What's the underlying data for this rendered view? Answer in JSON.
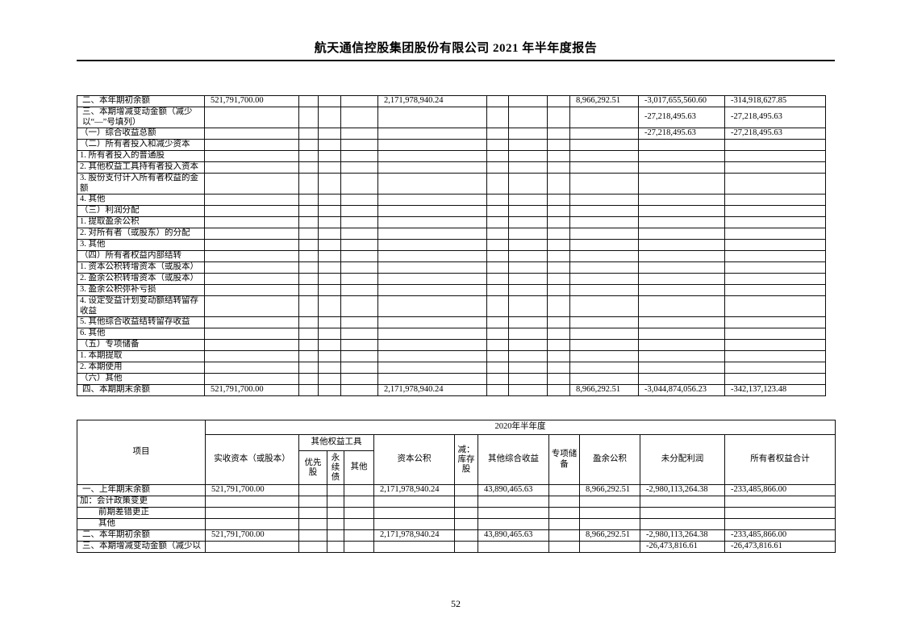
{
  "page": {
    "title": "航天通信控股集团股份有限公司 2021 年半年度报告",
    "page_number": "52"
  },
  "table1": {
    "rows": [
      {
        "indent": "sec",
        "cells": [
          "二、本年期初余额",
          "521,791,700.00",
          "",
          "",
          "",
          "2,171,978,940.24",
          "",
          "",
          "",
          "8,966,292.51",
          "-3,017,655,560.60",
          "-314,918,627.85"
        ]
      },
      {
        "indent": "sec",
        "cells": [
          "三、本期增减变动金额（减少以“—”号填列）",
          "",
          "",
          "",
          "",
          "",
          "",
          "",
          "",
          "",
          "-27,218,495.63",
          "-27,218,495.63"
        ]
      },
      {
        "indent": "sub",
        "cells": [
          "（一）综合收益总额",
          "",
          "",
          "",
          "",
          "",
          "",
          "",
          "",
          "",
          "-27,218,495.63",
          "-27,218,495.63"
        ]
      },
      {
        "indent": "sub",
        "cells": [
          "（二）所有者投入和减少资本",
          "",
          "",
          "",
          "",
          "",
          "",
          "",
          "",
          "",
          "",
          ""
        ]
      },
      {
        "indent": "item",
        "cells": [
          "1. 所有者投入的普通股",
          "",
          "",
          "",
          "",
          "",
          "",
          "",
          "",
          "",
          "",
          ""
        ]
      },
      {
        "indent": "item",
        "cells": [
          "2. 其他权益工具持有者投入资本",
          "",
          "",
          "",
          "",
          "",
          "",
          "",
          "",
          "",
          "",
          ""
        ]
      },
      {
        "indent": "item",
        "cells": [
          "3. 股份支付计入所有者权益的金额",
          "",
          "",
          "",
          "",
          "",
          "",
          "",
          "",
          "",
          "",
          ""
        ]
      },
      {
        "indent": "item",
        "cells": [
          "4. 其他",
          "",
          "",
          "",
          "",
          "",
          "",
          "",
          "",
          "",
          "",
          ""
        ]
      },
      {
        "indent": "sub",
        "cells": [
          "（三）利润分配",
          "",
          "",
          "",
          "",
          "",
          "",
          "",
          "",
          "",
          "",
          ""
        ]
      },
      {
        "indent": "item",
        "cells": [
          "1. 提取盈余公积",
          "",
          "",
          "",
          "",
          "",
          "",
          "",
          "",
          "",
          "",
          ""
        ]
      },
      {
        "indent": "item",
        "cells": [
          "2. 对所有者（或股东）的分配",
          "",
          "",
          "",
          "",
          "",
          "",
          "",
          "",
          "",
          "",
          ""
        ]
      },
      {
        "indent": "item",
        "cells": [
          "3. 其他",
          "",
          "",
          "",
          "",
          "",
          "",
          "",
          "",
          "",
          "",
          ""
        ]
      },
      {
        "indent": "sub",
        "cells": [
          "（四）所有者权益内部结转",
          "",
          "",
          "",
          "",
          "",
          "",
          "",
          "",
          "",
          "",
          ""
        ]
      },
      {
        "indent": "item",
        "cells": [
          "1. 资本公积转增资本（或股本）",
          "",
          "",
          "",
          "",
          "",
          "",
          "",
          "",
          "",
          "",
          ""
        ]
      },
      {
        "indent": "item",
        "cells": [
          "2. 盈余公积转增资本（或股本）",
          "",
          "",
          "",
          "",
          "",
          "",
          "",
          "",
          "",
          "",
          ""
        ]
      },
      {
        "indent": "item",
        "cells": [
          "3. 盈余公积弥补亏损",
          "",
          "",
          "",
          "",
          "",
          "",
          "",
          "",
          "",
          "",
          ""
        ]
      },
      {
        "indent": "item",
        "cells": [
          "4. 设定受益计划变动额结转留存收益",
          "",
          "",
          "",
          "",
          "",
          "",
          "",
          "",
          "",
          "",
          ""
        ]
      },
      {
        "indent": "item",
        "cells": [
          "5. 其他综合收益结转留存收益",
          "",
          "",
          "",
          "",
          "",
          "",
          "",
          "",
          "",
          "",
          ""
        ]
      },
      {
        "indent": "item",
        "cells": [
          "6. 其他",
          "",
          "",
          "",
          "",
          "",
          "",
          "",
          "",
          "",
          "",
          ""
        ]
      },
      {
        "indent": "sub",
        "cells": [
          "（五）专项储备",
          "",
          "",
          "",
          "",
          "",
          "",
          "",
          "",
          "",
          "",
          ""
        ]
      },
      {
        "indent": "item",
        "cells": [
          "1. 本期提取",
          "",
          "",
          "",
          "",
          "",
          "",
          "",
          "",
          "",
          "",
          ""
        ]
      },
      {
        "indent": "item",
        "cells": [
          "2. 本期使用",
          "",
          "",
          "",
          "",
          "",
          "",
          "",
          "",
          "",
          "",
          ""
        ]
      },
      {
        "indent": "sub",
        "cells": [
          "（六）其他",
          "",
          "",
          "",
          "",
          "",
          "",
          "",
          "",
          "",
          "",
          ""
        ]
      },
      {
        "indent": "sec",
        "cells": [
          "四、本期期末余额",
          "521,791,700.00",
          "",
          "",
          "",
          "2,171,978,940.24",
          "",
          "",
          "",
          "8,966,292.51",
          "-3,044,874,056.23",
          "-342,137,123.48"
        ]
      }
    ]
  },
  "table2": {
    "period": "2020年半年度",
    "headers": {
      "item": "项目",
      "paid_in_capital": "实收资本（或股本）",
      "other_equity_instruments": "其他权益工具",
      "preferred_shares": "优先股",
      "perpetual_bonds": "永续债",
      "other_instruments": "其他",
      "capital_reserve": "资本公积",
      "less_treasury_shares": "减：库存股",
      "other_comprehensive_income": "其他综合收益",
      "special_reserve": "专项储备",
      "surplus_reserve": "盈余公积",
      "undistributed_profit": "未分配利润",
      "total_owners_equity": "所有者权益合计"
    },
    "rows": [
      {
        "indent": "sec",
        "cells": [
          "一、上年期末余额",
          "521,791,700.00",
          "",
          "",
          "",
          "2,171,978,940.24",
          "",
          "43,890,465.63",
          "",
          "8,966,292.51",
          "-2,980,113,264.38",
          "-233,485,866.00"
        ]
      },
      {
        "indent": "item",
        "cells": [
          "加：会计政策变更",
          "",
          "",
          "",
          "",
          "",
          "",
          "",
          "",
          "",
          "",
          ""
        ]
      },
      {
        "indent": "deep",
        "cells": [
          "前期差错更正",
          "",
          "",
          "",
          "",
          "",
          "",
          "",
          "",
          "",
          "",
          ""
        ]
      },
      {
        "indent": "deep",
        "cells": [
          "其他",
          "",
          "",
          "",
          "",
          "",
          "",
          "",
          "",
          "",
          "",
          ""
        ]
      },
      {
        "indent": "sec",
        "cells": [
          "二、本年期初余额",
          "521,791,700.00",
          "",
          "",
          "",
          "2,171,978,940.24",
          "",
          "43,890,465.63",
          "",
          "8,966,292.51",
          "-2,980,113,264.38",
          "-233,485,866.00"
        ]
      },
      {
        "indent": "sec",
        "cells": [
          "三、本期增减变动金额（减少以",
          "",
          "",
          "",
          "",
          "",
          "",
          "",
          "",
          "",
          "-26,473,816.61",
          "-26,473,816.61"
        ]
      }
    ]
  }
}
